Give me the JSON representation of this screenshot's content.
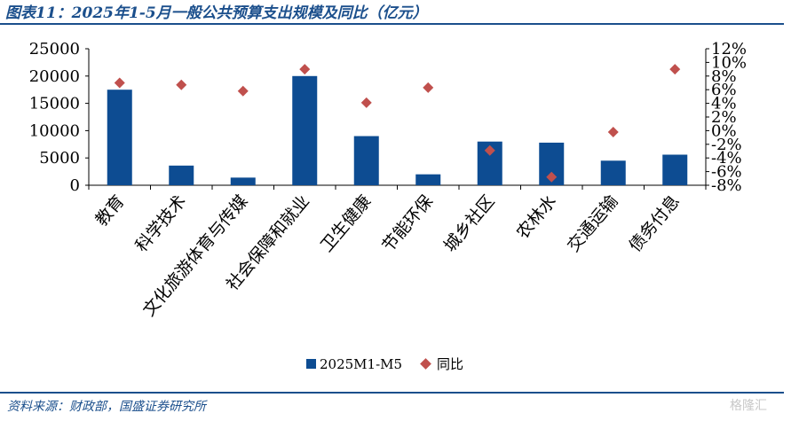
{
  "header": {
    "title": "图表11：2025年1-5月一般公共预算支出规模及同比（亿元）"
  },
  "footer": {
    "source": "资料来源：财政部，国盛证券研究所",
    "watermark": "格隆汇"
  },
  "colors": {
    "bar": "#0d4c92",
    "marker": "#c0504d",
    "accent": "#1b4f8c"
  },
  "chart_data": {
    "type": "bar",
    "categories": [
      "教育",
      "科学技术",
      "文化旅游体育与传媒",
      "社会保障和就业",
      "卫生健康",
      "节能环保",
      "城乡社区",
      "农林水",
      "交通运输",
      "债务付息"
    ],
    "series": [
      {
        "name": "2025M1-M5",
        "type": "bar",
        "axis": "left",
        "values": [
          17500,
          3600,
          1400,
          20000,
          9000,
          2000,
          8000,
          7800,
          4500,
          5600
        ]
      },
      {
        "name": "同比",
        "type": "scatter",
        "axis": "right",
        "unit": "%",
        "values": [
          7.0,
          6.7,
          5.8,
          9.0,
          4.1,
          6.3,
          -2.9,
          -6.8,
          -0.2,
          9.0
        ]
      }
    ],
    "ylim_left": [
      0,
      25000
    ],
    "yticks_left": [
      "0",
      "5000",
      "10000",
      "15000",
      "20000",
      "25000"
    ],
    "ylim_right": [
      -8,
      12
    ],
    "yticks_right": [
      "-8%",
      "-6%",
      "-4%",
      "-2%",
      "0%",
      "2%",
      "4%",
      "6%",
      "8%",
      "10%",
      "12%"
    ],
    "legend_position": "bottom",
    "grid": false
  }
}
